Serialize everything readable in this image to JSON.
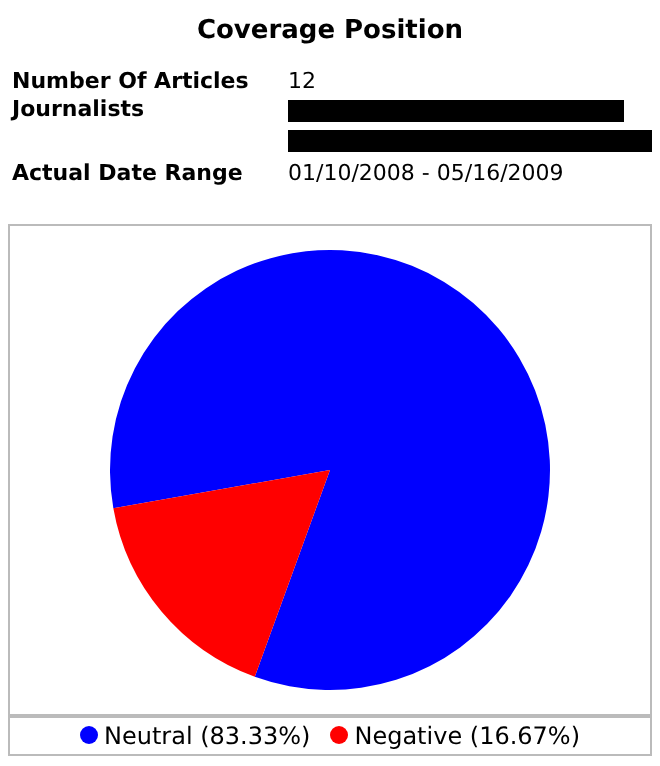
{
  "chart_data": {
    "type": "pie",
    "title": "Coverage Position",
    "annotations": [
      "Number Of Articles",
      "12",
      "Journalists",
      "Actual Date Range",
      "01/10/2008 - 05/16/2009"
    ],
    "categories": [
      "Neutral (83.33%)",
      "Negative (16.67%)"
    ],
    "values": [
      83.33,
      16.67
    ],
    "colors": [
      "#0000ff",
      "#ff0000"
    ],
    "legend": "bottom"
  }
}
